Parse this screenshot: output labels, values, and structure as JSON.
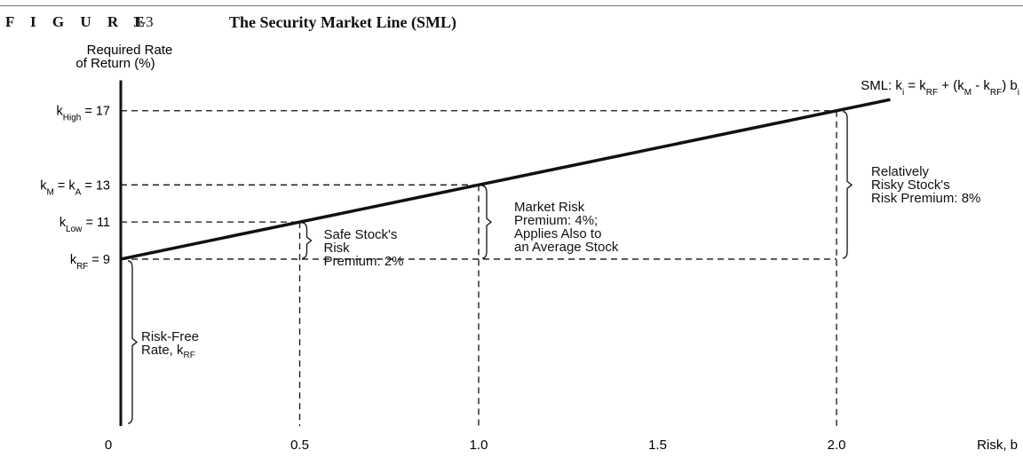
{
  "header": {
    "figure_word": "F I G U R E",
    "figure_number": "3-3",
    "title": "The Security Market Line (SML)"
  },
  "chart_data": {
    "type": "line",
    "title": "The Security Market Line (SML)",
    "xlabel": "Risk, b",
    "ylabel": "Required Rate of Return (%)",
    "xlim": [
      0,
      2.15
    ],
    "ylim": [
      0,
      19.5
    ],
    "x_ticks": [
      {
        "value": 0,
        "label": "0"
      },
      {
        "value": 0.5,
        "label": "0.5"
      },
      {
        "value": 1.0,
        "label": "1.0"
      },
      {
        "value": 1.5,
        "label": "1.5"
      },
      {
        "value": 2.0,
        "label": "2.0"
      }
    ],
    "y_ticks": [
      {
        "value": 17,
        "label": "k_High = 17"
      },
      {
        "value": 13,
        "label": "k_M = k_A = 13"
      },
      {
        "value": 11,
        "label": "k_Low = 11"
      },
      {
        "value": 9,
        "label": "k_RF = 9"
      }
    ],
    "series": [
      {
        "name": "SML: k_i = k_RF + (k_M - k_RF) b_i",
        "x": [
          0,
          2.15
        ],
        "y": [
          9,
          17.6
        ]
      }
    ],
    "reference_points": [
      {
        "x": 0.5,
        "y": 11
      },
      {
        "x": 1.0,
        "y": 13
      },
      {
        "x": 2.0,
        "y": 17
      }
    ],
    "annotations": {
      "risk_free": "Risk-Free\nRate, k_RF",
      "safe_premium": "Safe Stock's\nRisk\nPremium: 2%",
      "market_premium": "Market Risk\nPremium: 4%;\nApplies Also to\nan Average Stock",
      "risky_premium": "Relatively\nRisky Stock's\nRisk Premium: 8%"
    },
    "line_color": "#111111",
    "grid": false
  }
}
